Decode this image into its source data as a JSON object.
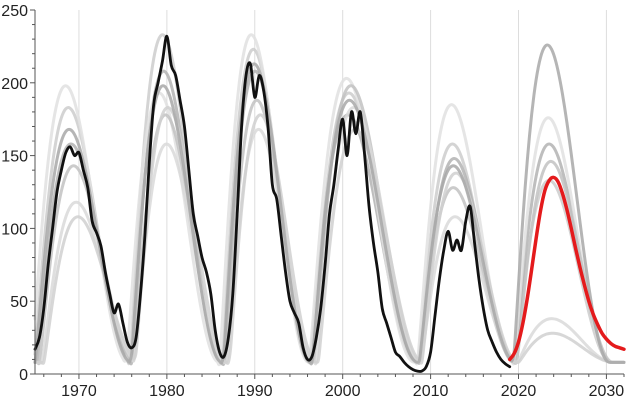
{
  "chart_data": {
    "type": "line",
    "title": "",
    "xlabel": "",
    "ylabel": "",
    "xlim": [
      1965,
      2032
    ],
    "ylim": [
      0,
      250
    ],
    "xticks": [
      1970,
      1980,
      1990,
      2000,
      2010,
      2020,
      2030
    ],
    "yticks": [
      0,
      50,
      100,
      150,
      200,
      250
    ],
    "grid": {
      "vertical": true,
      "horizontal": false
    },
    "legend": "none",
    "series": [
      {
        "color": "#111111",
        "role": "observed",
        "x": [
          1965,
          1965.5,
          1966,
          1966.5,
          1967,
          1967.5,
          1968,
          1968.5,
          1969,
          1969.5,
          1970,
          1970.5,
          1971,
          1971.5,
          1972,
          1972.5,
          1973,
          1973.5,
          1974,
          1974.5,
          1975,
          1975.5,
          1976,
          1976.5,
          1977,
          1977.5,
          1978,
          1978.5,
          1979,
          1979.5,
          1980,
          1980.5,
          1981,
          1981.5,
          1982,
          1982.5,
          1983,
          1983.5,
          1984,
          1984.5,
          1985,
          1985.5,
          1986,
          1986.5,
          1987,
          1987.5,
          1988,
          1988.5,
          1989,
          1989.5,
          1990,
          1990.5,
          1991,
          1991.5,
          1992,
          1992.5,
          1993,
          1993.5,
          1994,
          1994.5,
          1995,
          1995.5,
          1996,
          1996.5,
          1997,
          1997.5,
          1998,
          1998.5,
          1999,
          1999.5,
          2000,
          2000.5,
          2001,
          2001.5,
          2002,
          2002.5,
          2003,
          2003.5,
          2004,
          2004.5,
          2005,
          2005.5,
          2006,
          2006.5,
          2007,
          2007.5,
          2008,
          2008.5,
          2009,
          2009.5,
          2010,
          2010.5,
          2011,
          2011.5,
          2012,
          2012.5,
          2013,
          2013.5,
          2014,
          2014.5,
          2015,
          2015.5,
          2016,
          2016.5,
          2017,
          2017.5,
          2018,
          2018.5,
          2019
        ],
        "y": [
          17,
          25,
          45,
          75,
          100,
          125,
          140,
          152,
          156,
          150,
          152,
          140,
          128,
          105,
          97,
          88,
          70,
          55,
          42,
          48,
          35,
          22,
          18,
          25,
          55,
          95,
          145,
          185,
          200,
          215,
          232,
          212,
          205,
          188,
          170,
          140,
          110,
          95,
          80,
          70,
          55,
          30,
          15,
          12,
          25,
          55,
          110,
          170,
          205,
          213,
          190,
          205,
          195,
          170,
          130,
          120,
          95,
          70,
          50,
          42,
          35,
          18,
          10,
          12,
          25,
          45,
          75,
          110,
          130,
          155,
          175,
          150,
          180,
          165,
          180,
          150,
          115,
          90,
          70,
          45,
          35,
          25,
          15,
          12,
          8,
          5,
          3,
          2,
          2,
          5,
          15,
          40,
          65,
          85,
          98,
          85,
          92,
          85,
          105,
          115,
          90,
          65,
          45,
          30,
          22,
          15,
          10,
          7,
          5
        ]
      },
      {
        "color": "#e41a1c",
        "role": "predicted",
        "x": [
          2019,
          2019.5,
          2020,
          2020.5,
          2021,
          2021.5,
          2022,
          2022.5,
          2023,
          2023.5,
          2024,
          2024.5,
          2025,
          2025.5,
          2026,
          2026.5,
          2027,
          2027.5,
          2028,
          2028.5,
          2029,
          2029.5,
          2030,
          2030.5,
          2031,
          2031.5,
          2032
        ],
        "y": [
          10,
          14,
          22,
          35,
          52,
          72,
          93,
          112,
          126,
          133,
          135,
          132,
          124,
          113,
          100,
          86,
          73,
          61,
          50,
          41,
          34,
          28,
          24,
          21,
          19,
          18,
          17
        ]
      }
    ],
    "background_curves": [
      {
        "color": "#cccccc",
        "peaks": [
          {
            "t0": 1964.9,
            "len": 11,
            "amp": 175
          },
          {
            "t0": 1975.8,
            "len": 10.5,
            "amp": 225
          },
          {
            "t0": 1986.3,
            "len": 10,
            "amp": 215
          },
          {
            "t0": 1996.4,
            "len": 12.2,
            "amp": 185
          },
          {
            "t0": 2008.6,
            "len": 11,
            "amp": 150
          },
          {
            "t0": 2019.6,
            "len": 11,
            "amp": 125
          }
        ]
      },
      {
        "color": "#b3b3b3",
        "peaks": [
          {
            "t0": 1965.2,
            "len": 11,
            "amp": 150
          },
          {
            "t0": 1976.0,
            "len": 10.3,
            "amp": 200
          },
          {
            "t0": 1986.5,
            "len": 10,
            "amp": 200
          },
          {
            "t0": 1996.3,
            "len": 12.2,
            "amp": 170
          },
          {
            "t0": 2008.8,
            "len": 11,
            "amp": 140
          },
          {
            "t0": 2019.6,
            "len": 11,
            "amp": 150
          }
        ]
      },
      {
        "color": "#e0e0e0",
        "peaks": [
          {
            "t0": 1964.6,
            "len": 11,
            "amp": 190
          },
          {
            "t0": 1975.4,
            "len": 10.6,
            "amp": 185
          },
          {
            "t0": 1986.0,
            "len": 10.2,
            "amp": 225
          },
          {
            "t0": 1996.2,
            "len": 12.0,
            "amp": 195
          },
          {
            "t0": 2008.5,
            "len": 11,
            "amp": 177
          },
          {
            "t0": 2019.5,
            "len": 11,
            "amp": 168
          }
        ]
      },
      {
        "color": "#c2c2c2",
        "peaks": [
          {
            "t0": 1965.5,
            "len": 11,
            "amp": 135
          },
          {
            "t0": 1976.2,
            "len": 10.3,
            "amp": 170
          },
          {
            "t0": 1986.7,
            "len": 10,
            "amp": 180
          },
          {
            "t0": 1996.7,
            "len": 12.0,
            "amp": 190
          },
          {
            "t0": 2008.7,
            "len": 11,
            "amp": 120
          },
          {
            "t0": 2019.8,
            "len": 11,
            "amp": 138
          }
        ]
      },
      {
        "color": "#d9d9d9",
        "peaks": [
          {
            "t0": 1965.8,
            "len": 11,
            "amp": 110
          },
          {
            "t0": 1976.3,
            "len": 10.4,
            "amp": 150
          },
          {
            "t0": 1986.9,
            "len": 10,
            "amp": 160
          },
          {
            "t0": 1997.0,
            "len": 12.0,
            "amp": 175
          },
          {
            "t0": 2008.9,
            "len": 11,
            "amp": 100
          },
          {
            "t0": 2019.9,
            "len": 11,
            "amp": 30
          }
        ]
      },
      {
        "color": "#d0d0d0",
        "peaks": [
          {
            "t0": 1966.0,
            "len": 11,
            "amp": 100
          },
          {
            "t0": 1976.4,
            "len": 10.5,
            "amp": 175
          },
          {
            "t0": 1987.1,
            "len": 10,
            "amp": 170
          },
          {
            "t0": 1997.2,
            "len": 12.0,
            "amp": 160
          },
          {
            "t0": 2009.0,
            "len": 11,
            "amp": 130
          },
          {
            "t0": 2020.0,
            "len": 11,
            "amp": 20
          }
        ]
      },
      {
        "color": "#a8a8a8",
        "peaks": [
          {
            "t0": 1965.0,
            "len": 11,
            "amp": 160
          },
          {
            "t0": 1975.9,
            "len": 10.4,
            "amp": 190
          },
          {
            "t0": 1986.4,
            "len": 10,
            "amp": 205
          },
          {
            "t0": 1996.5,
            "len": 12.1,
            "amp": 180
          },
          {
            "t0": 2008.7,
            "len": 11,
            "amp": 135
          },
          {
            "t0": 2019.4,
            "len": 11,
            "amp": 218
          }
        ]
      }
    ]
  }
}
